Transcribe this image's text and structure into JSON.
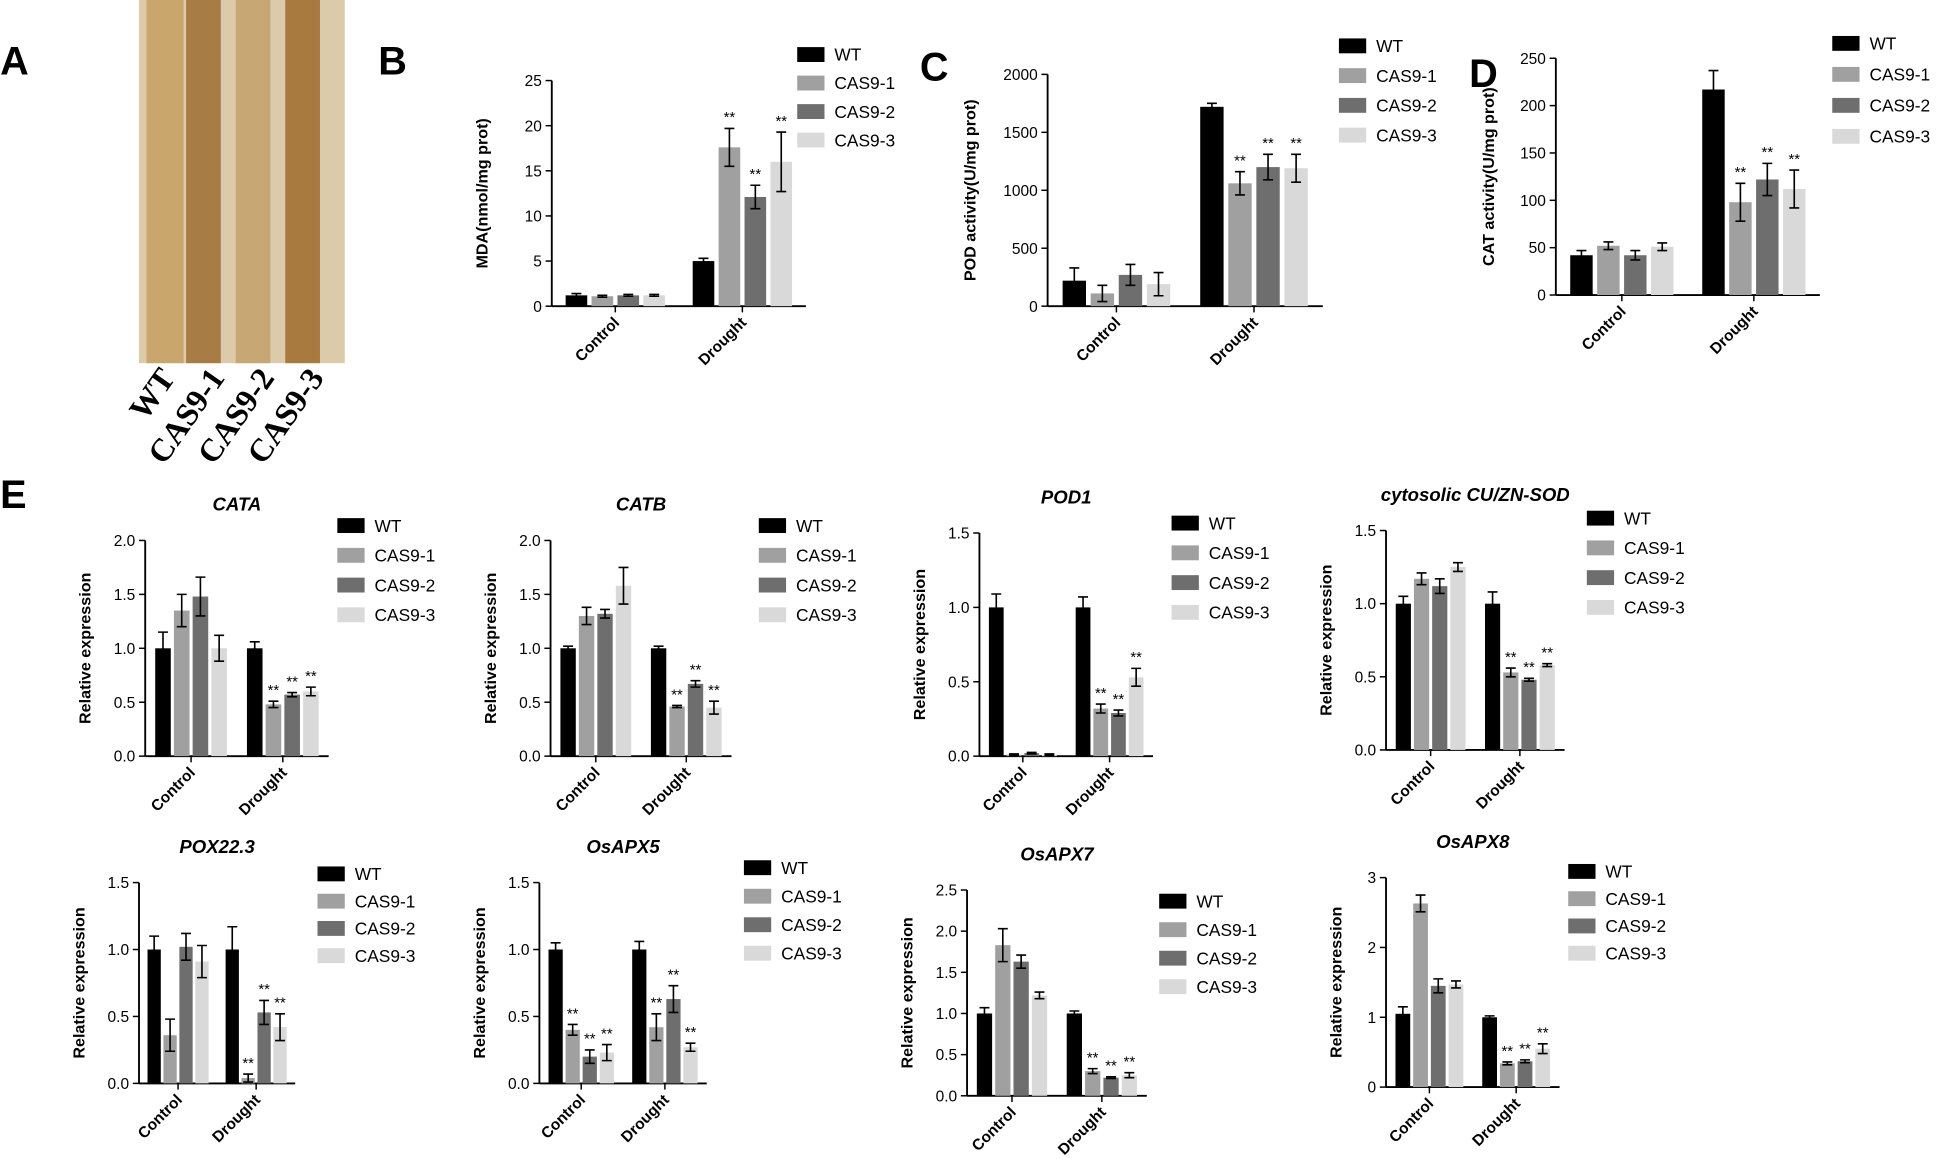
{
  "photo": {
    "panel_label": "A",
    "labels": [
      "WT",
      "CAS9-1",
      "CAS9-2",
      "CAS9-3"
    ]
  },
  "chart_data": [
    {
      "type": "bar",
      "panel_label": "B",
      "ylabel": "MDA(nmol/mg prot)",
      "categories": [
        "Control",
        "Drought"
      ],
      "ylim": [
        0,
        25
      ],
      "yticks": [
        0,
        5,
        10,
        15,
        20,
        25
      ],
      "series": [
        {
          "name": "WT",
          "color": "#000000",
          "values": [
            1.2,
            5.0
          ],
          "errors": [
            0.2,
            0.3
          ],
          "significance": [
            null,
            null
          ]
        },
        {
          "name": "CAS9-1",
          "color": "#a0a0a0",
          "values": [
            1.1,
            17.6
          ],
          "errors": [
            0.1,
            2.1
          ],
          "significance": [
            null,
            "**"
          ]
        },
        {
          "name": "CAS9-2",
          "color": "#6e6e6e",
          "values": [
            1.2,
            12.1
          ],
          "errors": [
            0.1,
            1.3
          ],
          "significance": [
            null,
            "**"
          ]
        },
        {
          "name": "CAS9-3",
          "color": "#d9d9d9",
          "values": [
            1.2,
            16.0
          ],
          "errors": [
            0.1,
            3.3
          ],
          "significance": [
            null,
            "**"
          ]
        }
      ]
    },
    {
      "type": "bar",
      "panel_label": "C",
      "ylabel": "POD activity(U/mg prot)",
      "categories": [
        "Control",
        "Drought"
      ],
      "ylim": [
        0,
        2000
      ],
      "yticks": [
        0,
        500,
        1000,
        1500,
        2000
      ],
      "series": [
        {
          "name": "WT",
          "color": "#000000",
          "values": [
            220,
            1720
          ],
          "errors": [
            110,
            30
          ],
          "significance": [
            null,
            null
          ]
        },
        {
          "name": "CAS9-1",
          "color": "#a0a0a0",
          "values": [
            110,
            1060
          ],
          "errors": [
            70,
            100
          ],
          "significance": [
            null,
            "**"
          ]
        },
        {
          "name": "CAS9-2",
          "color": "#6e6e6e",
          "values": [
            270,
            1200
          ],
          "errors": [
            90,
            110
          ],
          "significance": [
            null,
            "**"
          ]
        },
        {
          "name": "CAS9-3",
          "color": "#d9d9d9",
          "values": [
            190,
            1190
          ],
          "errors": [
            100,
            120
          ],
          "significance": [
            null,
            "**"
          ]
        }
      ]
    },
    {
      "type": "bar",
      "panel_label": "D",
      "ylabel": "CAT activity(U/mg prot)",
      "categories": [
        "Control",
        "Drought"
      ],
      "ylim": [
        0,
        250
      ],
      "yticks": [
        0,
        50,
        100,
        150,
        200,
        250
      ],
      "series": [
        {
          "name": "WT",
          "color": "#000000",
          "values": [
            42,
            217
          ],
          "errors": [
            5,
            20
          ],
          "significance": [
            null,
            null
          ]
        },
        {
          "name": "CAS9-1",
          "color": "#a0a0a0",
          "values": [
            52,
            98
          ],
          "errors": [
            4,
            20
          ],
          "significance": [
            null,
            "**"
          ]
        },
        {
          "name": "CAS9-2",
          "color": "#6e6e6e",
          "values": [
            42,
            122
          ],
          "errors": [
            5,
            17
          ],
          "significance": [
            null,
            "**"
          ]
        },
        {
          "name": "CAS9-3",
          "color": "#d9d9d9",
          "values": [
            51,
            112
          ],
          "errors": [
            4,
            20
          ],
          "significance": [
            null,
            "**"
          ]
        }
      ]
    },
    {
      "type": "bar",
      "panel_label": "E",
      "title": "CATA",
      "ylabel": "Relative expression",
      "categories": [
        "Control",
        "Drought"
      ],
      "ylim": [
        0,
        2
      ],
      "yticks": [
        {
          "value": 0,
          "label": "0.0"
        },
        0.5,
        {
          "value": 1,
          "label": "1.0"
        },
        1.5,
        {
          "value": 2,
          "label": "2.0"
        }
      ],
      "series": [
        {
          "name": "WT",
          "color": "#000000",
          "values": [
            1.0,
            1.0
          ],
          "errors": [
            0.15,
            0.06
          ],
          "significance": [
            null,
            null
          ]
        },
        {
          "name": "CAS9-1",
          "color": "#a0a0a0",
          "values": [
            1.35,
            0.48
          ],
          "errors": [
            0.15,
            0.03
          ],
          "significance": [
            null,
            "**"
          ]
        },
        {
          "name": "CAS9-2",
          "color": "#6e6e6e",
          "values": [
            1.48,
            0.57
          ],
          "errors": [
            0.18,
            0.02
          ],
          "significance": [
            null,
            "**"
          ]
        },
        {
          "name": "CAS9-3",
          "color": "#d9d9d9",
          "values": [
            1.0,
            0.6
          ],
          "errors": [
            0.12,
            0.04
          ],
          "significance": [
            null,
            "**"
          ]
        }
      ]
    },
    {
      "type": "bar",
      "title": "CATB",
      "ylabel": "Relative expression",
      "categories": [
        "Control",
        "Drought"
      ],
      "ylim": [
        0,
        2
      ],
      "yticks": [
        {
          "value": 0,
          "label": "0.0"
        },
        0.5,
        {
          "value": 1,
          "label": "1.0"
        },
        1.5,
        {
          "value": 2,
          "label": "2.0"
        }
      ],
      "series": [
        {
          "name": "WT",
          "color": "#000000",
          "values": [
            1.0,
            1.0
          ],
          "errors": [
            0.02,
            0.02
          ],
          "significance": [
            null,
            null
          ]
        },
        {
          "name": "CAS9-1",
          "color": "#a0a0a0",
          "values": [
            1.3,
            0.46
          ],
          "errors": [
            0.08,
            0.01
          ],
          "significance": [
            null,
            "**"
          ]
        },
        {
          "name": "CAS9-2",
          "color": "#6e6e6e",
          "values": [
            1.32,
            0.67
          ],
          "errors": [
            0.04,
            0.03
          ],
          "significance": [
            null,
            "**"
          ]
        },
        {
          "name": "CAS9-3",
          "color": "#d9d9d9",
          "values": [
            1.58,
            0.45
          ],
          "errors": [
            0.17,
            0.06
          ],
          "significance": [
            null,
            "**"
          ]
        }
      ]
    },
    {
      "type": "bar",
      "title": "POD1",
      "ylabel": "Relative expression",
      "categories": [
        "Control",
        "Drought"
      ],
      "ylim": [
        0,
        1.5
      ],
      "yticks": [
        {
          "value": 0,
          "label": "0.0"
        },
        0.5,
        {
          "value": 1,
          "label": "1.0"
        },
        1.5
      ],
      "series": [
        {
          "name": "WT",
          "color": "#000000",
          "values": [
            1.0,
            1.0
          ],
          "errors": [
            0.09,
            0.07
          ],
          "significance": [
            null,
            null
          ]
        },
        {
          "name": "CAS9-1",
          "color": "#a0a0a0",
          "values": [
            0.01,
            0.32
          ],
          "errors": [
            0.005,
            0.03
          ],
          "significance": [
            null,
            "**"
          ]
        },
        {
          "name": "CAS9-2",
          "color": "#6e6e6e",
          "values": [
            0.02,
            0.29
          ],
          "errors": [
            0.005,
            0.02
          ],
          "significance": [
            null,
            "**"
          ]
        },
        {
          "name": "CAS9-3",
          "color": "#d9d9d9",
          "values": [
            0.01,
            0.53
          ],
          "errors": [
            0.005,
            0.06
          ],
          "significance": [
            null,
            "**"
          ]
        }
      ]
    },
    {
      "type": "bar",
      "title": "cytosolic CU/ZN-SOD",
      "ylabel": "Relative expression",
      "categories": [
        "Control",
        "Drought"
      ],
      "ylim": [
        0,
        1.5
      ],
      "yticks": [
        {
          "value": 0,
          "label": "0.0"
        },
        0.5,
        {
          "value": 1,
          "label": "1.0"
        },
        1.5
      ],
      "series": [
        {
          "name": "WT",
          "color": "#000000",
          "values": [
            1.0,
            1.0
          ],
          "errors": [
            0.05,
            0.08
          ],
          "significance": [
            null,
            null
          ]
        },
        {
          "name": "CAS9-1",
          "color": "#a0a0a0",
          "values": [
            1.17,
            0.53
          ],
          "errors": [
            0.04,
            0.03
          ],
          "significance": [
            null,
            "**"
          ]
        },
        {
          "name": "CAS9-2",
          "color": "#6e6e6e",
          "values": [
            1.12,
            0.48
          ],
          "errors": [
            0.05,
            0.01
          ],
          "significance": [
            null,
            "**"
          ]
        },
        {
          "name": "CAS9-3",
          "color": "#d9d9d9",
          "values": [
            1.25,
            0.58
          ],
          "errors": [
            0.03,
            0.01
          ],
          "significance": [
            null,
            "**"
          ]
        }
      ]
    },
    {
      "type": "bar",
      "title": "POX22.3",
      "ylabel": "Relative expression",
      "categories": [
        "Control",
        "Drought"
      ],
      "ylim": [
        0,
        1.5
      ],
      "yticks": [
        {
          "value": 0,
          "label": "0.0"
        },
        0.5,
        {
          "value": 1,
          "label": "1.0"
        },
        1.5
      ],
      "series": [
        {
          "name": "WT",
          "color": "#000000",
          "values": [
            1.0,
            1.0
          ],
          "errors": [
            0.1,
            0.17
          ],
          "significance": [
            null,
            null
          ]
        },
        {
          "name": "CAS9-1",
          "color": "#a0a0a0",
          "values": [
            0.36,
            0.04
          ],
          "errors": [
            0.12,
            0.03
          ],
          "significance": [
            null,
            "**"
          ]
        },
        {
          "name": "CAS9-2",
          "color": "#6e6e6e",
          "values": [
            1.02,
            0.53
          ],
          "errors": [
            0.1,
            0.09
          ],
          "significance": [
            null,
            "**"
          ]
        },
        {
          "name": "CAS9-3",
          "color": "#d9d9d9",
          "values": [
            0.91,
            0.42
          ],
          "errors": [
            0.12,
            0.1
          ],
          "significance": [
            null,
            "**"
          ]
        }
      ]
    },
    {
      "type": "bar",
      "title": "OsAPX5",
      "ylabel": "Relative expression",
      "categories": [
        "Control",
        "Drought"
      ],
      "ylim": [
        0,
        1.5
      ],
      "yticks": [
        {
          "value": 0,
          "label": "0.0"
        },
        0.5,
        {
          "value": 1,
          "label": "1.0"
        },
        1.5
      ],
      "series": [
        {
          "name": "WT",
          "color": "#000000",
          "values": [
            1.0,
            1.0
          ],
          "errors": [
            0.05,
            0.06
          ],
          "significance": [
            null,
            null
          ]
        },
        {
          "name": "CAS9-1",
          "color": "#a0a0a0",
          "values": [
            0.4,
            0.42
          ],
          "errors": [
            0.04,
            0.1
          ],
          "significance": [
            "**",
            "**"
          ]
        },
        {
          "name": "CAS9-2",
          "color": "#6e6e6e",
          "values": [
            0.2,
            0.63
          ],
          "errors": [
            0.05,
            0.1
          ],
          "significance": [
            "**",
            "**"
          ]
        },
        {
          "name": "CAS9-3",
          "color": "#d9d9d9",
          "values": [
            0.23,
            0.27
          ],
          "errors": [
            0.06,
            0.03
          ],
          "significance": [
            "**",
            "**"
          ]
        }
      ]
    },
    {
      "type": "bar",
      "title": "OsAPX7",
      "ylabel": "Relative expression",
      "categories": [
        "Control",
        "Drought"
      ],
      "ylim": [
        0,
        2.5
      ],
      "yticks": [
        {
          "value": 0,
          "label": "0.0"
        },
        0.5,
        {
          "value": 1,
          "label": "1.0"
        },
        1.5,
        {
          "value": 2,
          "label": "2.0"
        },
        2.5
      ],
      "series": [
        {
          "name": "WT",
          "color": "#000000",
          "values": [
            1.0,
            1.0
          ],
          "errors": [
            0.07,
            0.03
          ],
          "significance": [
            null,
            null
          ]
        },
        {
          "name": "CAS9-1",
          "color": "#a0a0a0",
          "values": [
            1.83,
            0.3
          ],
          "errors": [
            0.2,
            0.03
          ],
          "significance": [
            null,
            "**"
          ]
        },
        {
          "name": "CAS9-2",
          "color": "#6e6e6e",
          "values": [
            1.63,
            0.22
          ],
          "errors": [
            0.08,
            0.01
          ],
          "significance": [
            null,
            "**"
          ]
        },
        {
          "name": "CAS9-3",
          "color": "#d9d9d9",
          "values": [
            1.22,
            0.25
          ],
          "errors": [
            0.04,
            0.03
          ],
          "significance": [
            null,
            "**"
          ]
        }
      ]
    },
    {
      "type": "bar",
      "title": "OsAPX8",
      "ylabel": "Relative expression",
      "categories": [
        "Control",
        "Drought"
      ],
      "ylim": [
        0,
        3
      ],
      "yticks": [
        0,
        1,
        2,
        3
      ],
      "series": [
        {
          "name": "WT",
          "color": "#000000",
          "values": [
            1.05,
            1.0
          ],
          "errors": [
            0.1,
            0.02
          ],
          "significance": [
            null,
            null
          ]
        },
        {
          "name": "CAS9-1",
          "color": "#a0a0a0",
          "values": [
            2.63,
            0.34
          ],
          "errors": [
            0.12,
            0.02
          ],
          "significance": [
            null,
            "**"
          ]
        },
        {
          "name": "CAS9-2",
          "color": "#6e6e6e",
          "values": [
            1.45,
            0.37
          ],
          "errors": [
            0.1,
            0.02
          ],
          "significance": [
            null,
            "**"
          ]
        },
        {
          "name": "CAS9-3",
          "color": "#d9d9d9",
          "values": [
            1.47,
            0.55
          ],
          "errors": [
            0.05,
            0.07
          ],
          "significance": [
            null,
            "**"
          ]
        }
      ]
    }
  ]
}
